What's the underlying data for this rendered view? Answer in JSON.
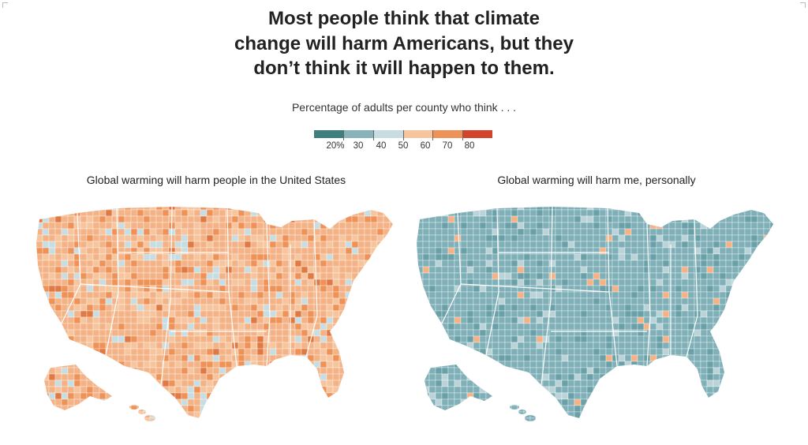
{
  "title_lines": [
    "Most people think that climate",
    "change will harm Americans, but they",
    "don’t think it will happen to them."
  ],
  "subtitle": "Percentage of adults per county who think . . .",
  "legend": {
    "colors": [
      "#3f7f80",
      "#88b3bb",
      "#c8dde2",
      "#f7c59d",
      "#ef9257",
      "#d4442c"
    ],
    "labels": [
      "20%",
      "30",
      "40",
      "50",
      "60",
      "70",
      "80"
    ]
  },
  "maps": [
    {
      "title": "Global warming will harm people in the United States",
      "base_color": "#f4b386",
      "palette": [
        "#f7c59d",
        "#f4b386",
        "#ef9257",
        "#c8dde2",
        "#e07a45"
      ]
    },
    {
      "title": "Global warming will harm me, personally",
      "base_color": "#7fb0b7",
      "palette": [
        "#7fb0b7",
        "#88b3bb",
        "#6aa0a8",
        "#b9d3d8",
        "#f4b386"
      ]
    }
  ]
}
